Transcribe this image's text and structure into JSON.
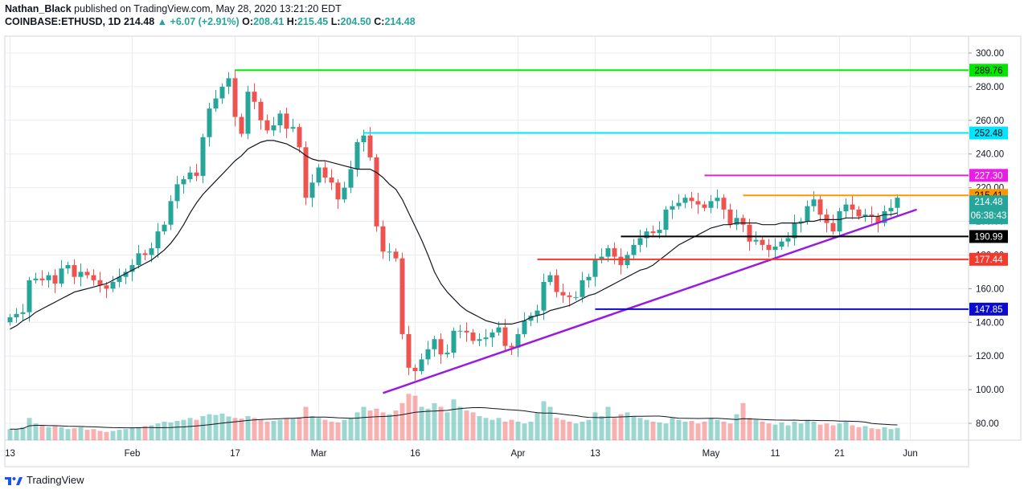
{
  "header": {
    "author": "Nathan_Black",
    "published_text": "published on TradingView.com, May 28, 2020 13:21:20 EDT",
    "symbol": "COINBASE:ETHUSD, 1D",
    "last": "214.48",
    "change": "▲ +6.07 (+2.91%)",
    "o_label": "O:",
    "o": "208.41",
    "h_label": "H:",
    "h": "215.45",
    "l_label": "L:",
    "l": "204.50",
    "c_label": "C:",
    "c": "214.48"
  },
  "footer": {
    "brand": "TradingView"
  },
  "colors": {
    "up": "#26a69a",
    "down": "#ef5350",
    "grid": "#e9ecef",
    "ma": "#131722"
  },
  "chart_data": {
    "type": "candlestick",
    "title": "COINBASE:ETHUSD, 1D",
    "ylim": [
      70,
      310
    ],
    "y_ticks": [
      80,
      100,
      120,
      140,
      160,
      180,
      200,
      220,
      240,
      260,
      280,
      300
    ],
    "y_tick_labels": [
      "80.00",
      "100.00",
      "120.00",
      "140.00",
      "160.00",
      "180.00",
      "200.00",
      "220.00",
      "240.00",
      "260.00",
      "280.00",
      "300.00"
    ],
    "x_ticks": [
      {
        "label": "13",
        "day": 0
      },
      {
        "label": "Feb",
        "day": 19
      },
      {
        "label": "17",
        "day": 35
      },
      {
        "label": "Mar",
        "day": 48
      },
      {
        "label": "16",
        "day": 63
      },
      {
        "label": "Apr",
        "day": 79
      },
      {
        "label": "13",
        "day": 91
      },
      {
        "label": "May",
        "day": 109
      },
      {
        "label": "11",
        "day": 119
      },
      {
        "label": "21",
        "day": 129
      },
      {
        "label": "Jun",
        "day": 140
      }
    ],
    "closes": [
      143,
      145,
      146,
      165,
      166,
      165,
      168,
      163,
      172,
      174,
      167,
      170,
      168,
      165,
      162,
      160,
      164,
      167,
      170,
      174,
      181,
      180,
      184,
      194,
      198,
      212,
      222,
      225,
      229,
      227,
      250,
      267,
      273,
      280,
      285,
      262,
      252,
      277,
      271,
      260,
      254,
      257,
      264,
      255,
      256,
      244,
      214,
      223,
      232,
      226,
      223,
      213,
      220,
      231,
      247,
      251,
      238,
      197,
      182,
      182,
      178,
      133,
      113,
      111,
      118,
      124,
      130,
      121,
      122,
      135,
      135,
      134,
      129,
      130,
      131,
      134,
      137,
      126,
      125,
      133,
      141,
      144,
      147,
      164,
      168,
      158,
      156,
      155,
      155,
      165,
      167,
      177,
      179,
      184,
      179,
      174,
      180,
      186,
      190,
      194,
      193,
      195,
      207,
      209,
      211,
      214,
      212,
      210,
      208,
      212,
      214,
      207,
      198,
      202,
      198,
      188,
      189,
      186,
      183,
      185,
      188,
      190,
      199,
      200,
      209,
      213,
      204,
      199,
      194,
      206,
      210,
      207,
      203,
      204,
      203,
      199,
      206,
      208,
      214
    ],
    "volumes": [
      0.3,
      0.3,
      0.35,
      0.6,
      0.45,
      0.4,
      0.35,
      0.38,
      0.35,
      0.3,
      0.32,
      0.35,
      0.28,
      0.3,
      0.25,
      0.22,
      0.25,
      0.28,
      0.3,
      0.34,
      0.35,
      0.38,
      0.4,
      0.45,
      0.5,
      0.48,
      0.52,
      0.55,
      0.6,
      0.55,
      0.65,
      0.7,
      0.68,
      0.72,
      0.64,
      0.6,
      0.58,
      0.65,
      0.6,
      0.55,
      0.5,
      0.52,
      0.55,
      0.6,
      0.58,
      0.62,
      0.9,
      0.65,
      0.6,
      0.55,
      0.5,
      0.48,
      0.55,
      0.6,
      0.75,
      0.9,
      0.8,
      0.85,
      0.75,
      0.7,
      0.8,
      1.0,
      1.25,
      1.2,
      0.9,
      0.85,
      1.0,
      0.9,
      0.75,
      1.1,
      0.9,
      0.8,
      0.75,
      0.65,
      0.6,
      0.55,
      0.6,
      0.5,
      0.55,
      0.5,
      0.45,
      0.5,
      0.75,
      1.05,
      0.9,
      0.6,
      0.55,
      0.5,
      0.45,
      0.5,
      0.55,
      0.75,
      0.65,
      0.9,
      0.6,
      0.7,
      0.75,
      0.65,
      0.6,
      0.55,
      0.5,
      0.48,
      0.45,
      0.6,
      0.55,
      0.5,
      0.52,
      0.45,
      0.5,
      0.6,
      0.55,
      0.5,
      0.45,
      0.7,
      1.0,
      0.6,
      0.55,
      0.5,
      0.45,
      0.42,
      0.48,
      0.4,
      0.5,
      0.45,
      0.55,
      0.5,
      0.42,
      0.45,
      0.4,
      0.45,
      0.5,
      0.4,
      0.35,
      0.38,
      0.32,
      0.3,
      0.35,
      0.3,
      0.33
    ],
    "ma20": [
      136,
      138,
      141,
      143,
      146,
      148,
      150,
      152,
      154,
      156,
      158,
      159,
      160,
      161,
      162,
      163,
      165,
      167,
      169,
      171,
      173,
      175,
      177,
      180,
      183,
      187,
      192,
      198,
      205,
      211,
      216,
      220,
      224,
      228,
      232,
      236,
      239,
      243,
      245,
      247,
      248,
      248,
      247,
      246,
      244,
      242,
      239,
      237,
      236,
      236,
      235,
      234,
      233,
      232,
      231,
      231,
      231,
      229,
      226,
      222,
      219,
      213,
      205,
      197,
      189,
      180,
      170,
      163,
      158,
      154,
      150,
      147,
      145,
      143,
      141,
      140,
      139,
      139,
      139,
      140,
      141,
      143,
      144,
      145,
      147,
      148,
      149,
      150,
      152,
      154,
      156,
      157,
      159,
      161,
      163,
      165,
      167,
      169,
      171,
      172,
      174,
      177,
      180,
      183,
      186,
      188,
      190,
      192,
      194,
      196,
      197,
      198,
      198,
      199,
      199,
      199,
      199,
      198,
      198,
      198,
      199,
      199,
      199,
      199,
      200,
      200,
      201,
      201,
      201,
      201,
      202,
      202,
      202,
      203,
      203,
      203,
      204,
      204,
      205
    ],
    "horizontal_levels": [
      {
        "value": 289.76,
        "label": "289.76",
        "color": "#00e600",
        "start_day": 35
      },
      {
        "value": 252.48,
        "label": "252.48",
        "color": "#00e5ff",
        "start_day": 55
      },
      {
        "value": 227.3,
        "label": "227.30",
        "color": "#e91ee6",
        "start_day": 108
      },
      {
        "value": 215.41,
        "label": "215.41",
        "color": "#ff9800",
        "start_day": 114
      },
      {
        "value": 190.99,
        "label": "190.99",
        "color": "#000000",
        "start_day": 95
      },
      {
        "value": 177.44,
        "label": "177.44",
        "color": "#f23a2f",
        "start_day": 82
      },
      {
        "value": 147.85,
        "label": "147.85",
        "color": "#0a0ad0",
        "start_day": 91
      }
    ],
    "trendline": {
      "color": "#9a1be0",
      "from": {
        "day": 58,
        "value": 98
      },
      "to": {
        "day": 141,
        "value": 207
      }
    },
    "last_price_tag": {
      "value": 214.48,
      "label": "214.48"
    },
    "countdown_tag": {
      "label": "06:38:43"
    }
  }
}
